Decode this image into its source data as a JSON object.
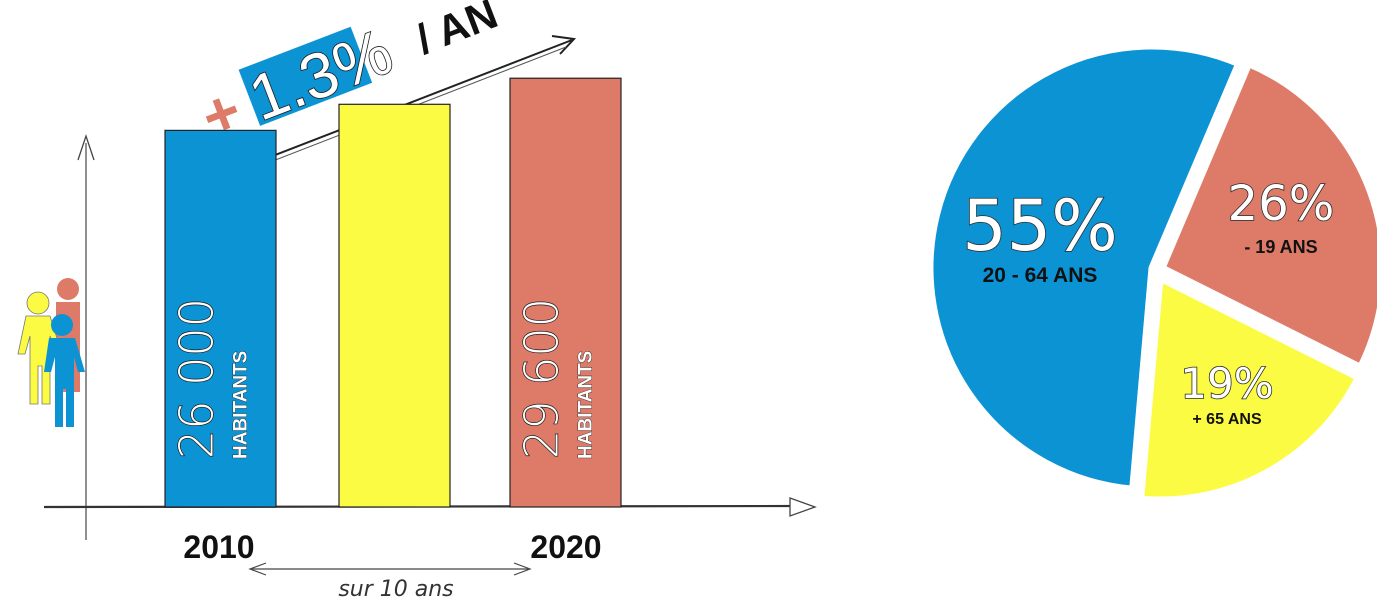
{
  "colors": {
    "blue": "#0c93d4",
    "yellow": "#fbfb44",
    "salmon": "#dd7b68",
    "ink": "#111111"
  },
  "headline": {
    "plus": "+",
    "rate": "1.3%",
    "per": "/ AN"
  },
  "timeline": {
    "label": "sur 10 ans"
  },
  "chart_data": [
    {
      "type": "bar",
      "categories": [
        "2010",
        "",
        "2020"
      ],
      "values": [
        26000,
        27800,
        29600
      ],
      "labels": [
        {
          "number": "26 000",
          "unit": "HABITANTS"
        },
        null,
        {
          "number": "29 600",
          "unit": "HABITANTS"
        }
      ],
      "colors": [
        "#0c93d4",
        "#fbfb44",
        "#dd7b68"
      ],
      "ylim": [
        0,
        35000
      ],
      "grid": false,
      "legend": "none"
    },
    {
      "type": "pie",
      "slices": [
        {
          "percent": 55,
          "label": "55%",
          "sub": "20 - 64 ANS",
          "color": "#0c93d4"
        },
        {
          "percent": 26,
          "label": "26%",
          "sub": "- 19 ANS",
          "color": "#dd7b68"
        },
        {
          "percent": 19,
          "label": "19%",
          "sub": "+ 65 ANS",
          "color": "#fbfb44"
        }
      ],
      "legend": "none"
    }
  ]
}
